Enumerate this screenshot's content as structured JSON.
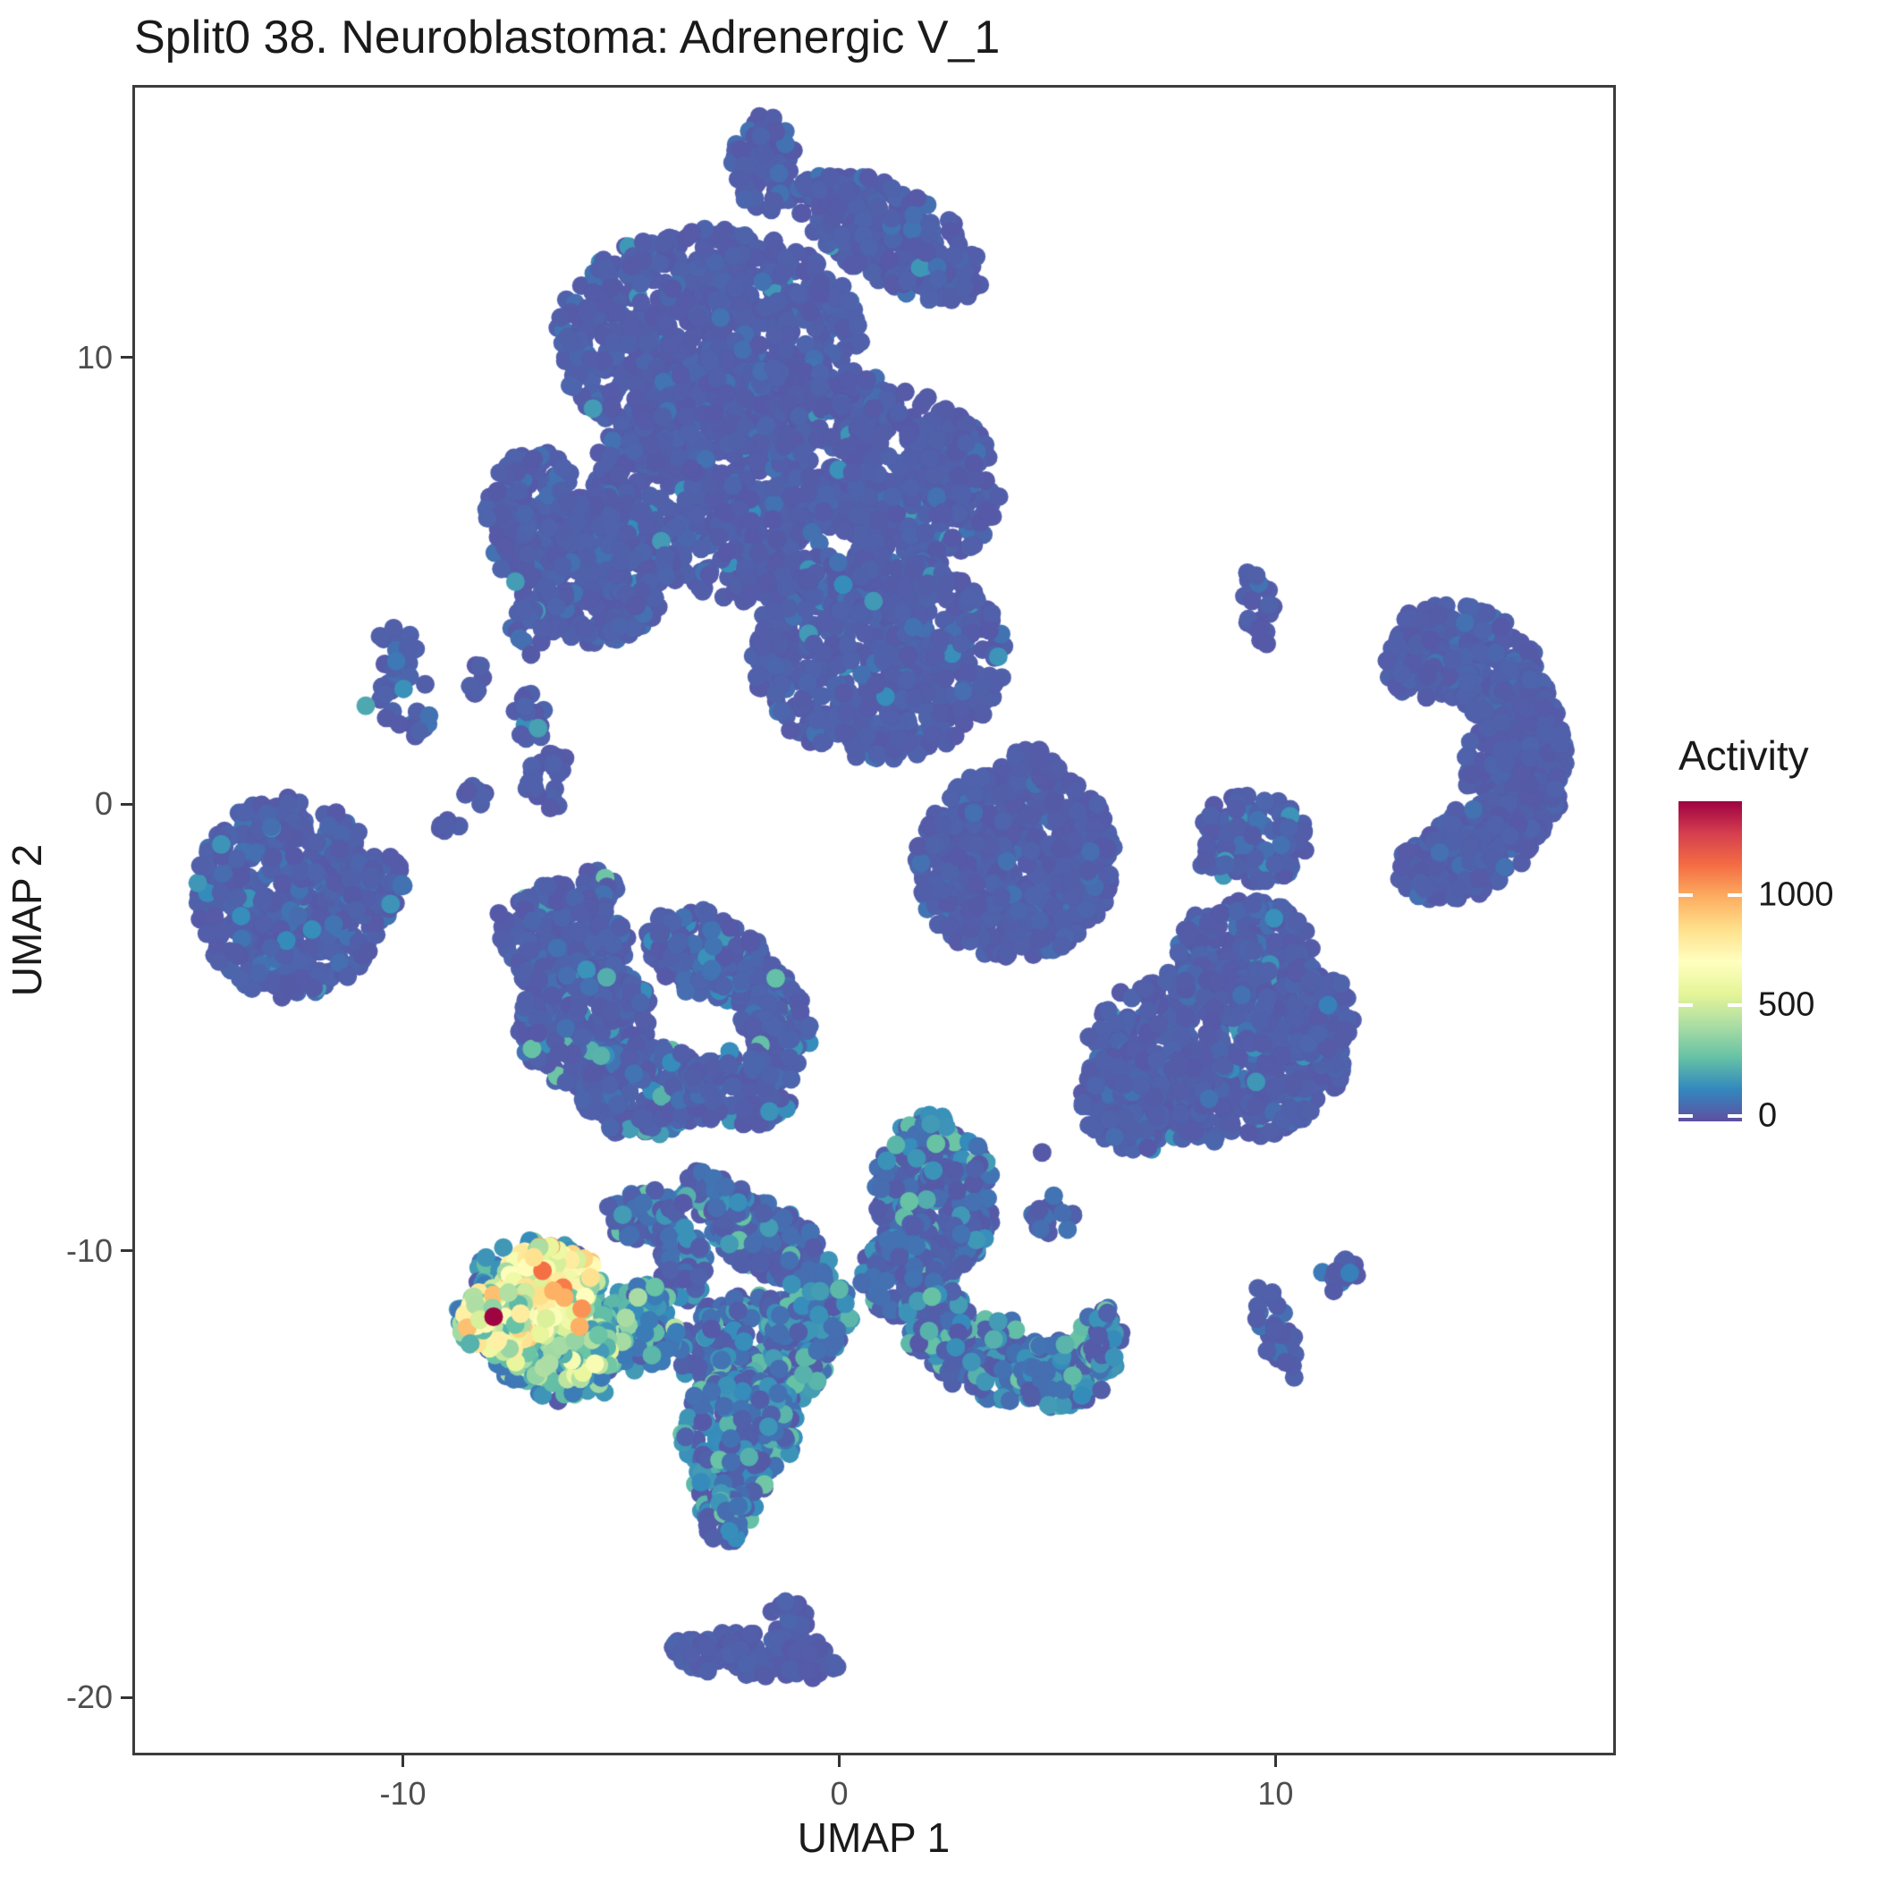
{
  "title": "Split0 38. Neuroblastoma: Adrenergic V_1",
  "chart_data": {
    "type": "scatter",
    "title": "Split0 38. Neuroblastoma: Adrenergic V_1",
    "xlabel": "UMAP 1",
    "ylabel": "UMAP 2",
    "xlim": [
      -16.2,
      17.8
    ],
    "ylim": [
      -21.3,
      16.1
    ],
    "x_ticks": [
      -10,
      0,
      10
    ],
    "y_ticks": [
      10,
      0,
      -10,
      -20
    ],
    "grid": false,
    "legend_title": "Activity",
    "legend_ticks": [
      1000,
      500,
      0
    ],
    "legend_position": "right",
    "color_palette": [
      "#5e4fa2",
      "#3288bd",
      "#66c2a5",
      "#abdda4",
      "#e6f598",
      "#ffffbf",
      "#fee08b",
      "#fdae61",
      "#f46d43",
      "#d53e4f",
      "#9e0142"
    ],
    "color_domain": [
      -25,
      1425
    ],
    "point_radius_px": 10.5,
    "clusters": [
      {
        "name": "top-main",
        "count": 3200,
        "ellipses": [
          [
            -1.7,
            14.3,
            0.75,
            1.15,
            0
          ],
          [
            1.2,
            12.7,
            2.4,
            1.05,
            -28
          ],
          [
            -3.0,
            10.4,
            3.5,
            2.5,
            0
          ],
          [
            -1.0,
            7.1,
            4.7,
            2.7,
            0
          ],
          [
            0.9,
            3.3,
            2.9,
            2.3,
            0
          ],
          [
            -5.7,
            5.3,
            1.9,
            1.7,
            0
          ],
          [
            -7.0,
            6.4,
            1.1,
            1.6,
            0
          ]
        ],
        "values": [
          [
            0,
            0.82
          ],
          [
            30,
            0.1
          ],
          [
            60,
            0.06
          ],
          [
            150,
            0.02
          ]
        ]
      },
      {
        "name": "left-small-two-lobe",
        "count": 38,
        "ellipses": [
          [
            -10.15,
            3.55,
            0.45,
            0.55,
            0
          ],
          [
            -9.9,
            2.45,
            0.65,
            0.95,
            10
          ]
        ],
        "values": [
          [
            0,
            0.7
          ],
          [
            30,
            0.15
          ],
          [
            60,
            0.1
          ],
          [
            150,
            0.05
          ]
        ]
      },
      {
        "name": "tiny-three-point",
        "count": 7,
        "ellipses": [
          [
            -8.25,
            2.75,
            0.28,
            0.4,
            0
          ]
        ],
        "values": [
          [
            0,
            1.0
          ]
        ]
      },
      {
        "name": "vertical-strip-chain",
        "count": 55,
        "ellipses": [
          [
            -7.15,
            3.85,
            0.42,
            0.55,
            0
          ],
          [
            -7.1,
            1.9,
            0.38,
            0.62,
            0
          ],
          [
            -6.6,
            0.55,
            0.6,
            0.68,
            0
          ]
        ],
        "values": [
          [
            0,
            0.8
          ],
          [
            30,
            0.1
          ],
          [
            60,
            0.07
          ],
          [
            150,
            0.03
          ]
        ]
      },
      {
        "name": "tiny-pair-a",
        "count": 7,
        "ellipses": [
          [
            -8.45,
            0.15,
            0.35,
            0.28,
            0
          ]
        ],
        "values": [
          [
            0,
            1.0
          ]
        ]
      },
      {
        "name": "tiny-pair-b",
        "count": 6,
        "ellipses": [
          [
            -8.85,
            -0.5,
            0.3,
            0.3,
            0
          ]
        ],
        "values": [
          [
            0,
            1.0
          ]
        ]
      },
      {
        "name": "left-cluster",
        "count": 520,
        "ellipses": [
          [
            -12.6,
            -2.1,
            2.15,
            2.25,
            10
          ],
          [
            -10.6,
            -1.9,
            0.7,
            0.8,
            0
          ]
        ],
        "values": [
          [
            0,
            0.66
          ],
          [
            30,
            0.16
          ],
          [
            60,
            0.12
          ],
          [
            150,
            0.06
          ]
        ]
      },
      {
        "name": "mid-left-complex",
        "count": 1050,
        "ellipses": [
          [
            -5.5,
            -1.7,
            0.5,
            0.3,
            -40
          ],
          [
            -6.3,
            -3.0,
            1.45,
            1.25,
            0
          ],
          [
            -5.8,
            -4.9,
            1.55,
            1.45,
            0
          ],
          [
            -4.5,
            -6.4,
            1.5,
            1.05,
            0
          ],
          [
            -3.0,
            -3.4,
            1.5,
            0.95,
            -25
          ],
          [
            -1.5,
            -4.7,
            0.75,
            1.25,
            25
          ],
          [
            -2.3,
            -6.4,
            1.25,
            0.9,
            0
          ]
        ],
        "values": [
          [
            0,
            0.62
          ],
          [
            30,
            0.18
          ],
          [
            60,
            0.12
          ],
          [
            150,
            0.06
          ],
          [
            250,
            0.02
          ]
        ]
      },
      {
        "name": "center-right-blob",
        "count": 620,
        "ellipses": [
          [
            4.05,
            -1.3,
            2.3,
            2.15,
            12
          ],
          [
            4.5,
            0.8,
            0.6,
            0.55,
            0
          ]
        ],
        "values": [
          [
            0,
            0.85
          ],
          [
            30,
            0.1
          ],
          [
            60,
            0.05
          ]
        ]
      },
      {
        "name": "right-mid-cluster",
        "count": 1150,
        "ellipses": [
          [
            9.4,
            -0.8,
            1.35,
            1.0,
            0
          ],
          [
            9.3,
            -3.2,
            1.55,
            1.05,
            0
          ],
          [
            8.6,
            -5.6,
            3.0,
            2.0,
            0
          ],
          [
            7.0,
            -6.6,
            1.5,
            1.2,
            0
          ],
          [
            10.4,
            -4.7,
            1.4,
            1.1,
            0
          ]
        ],
        "values": [
          [
            0,
            0.74
          ],
          [
            30,
            0.14
          ],
          [
            60,
            0.08
          ],
          [
            150,
            0.04
          ]
        ]
      },
      {
        "name": "right-crescent",
        "count": 780,
        "ellipses": [
          [
            14.5,
            3.3,
            1.8,
            1.05,
            -25
          ],
          [
            15.5,
            1.0,
            1.15,
            2.1,
            0
          ],
          [
            14.4,
            -1.05,
            1.7,
            1.0,
            22
          ],
          [
            13.3,
            3.1,
            0.8,
            0.75,
            0
          ]
        ],
        "values": [
          [
            0,
            0.84
          ],
          [
            30,
            0.11
          ],
          [
            60,
            0.05
          ]
        ]
      },
      {
        "name": "chain-top-right",
        "count": 22,
        "ellipses": [
          [
            9.6,
            4.4,
            0.38,
            0.85,
            15
          ]
        ],
        "values": [
          [
            0,
            0.9
          ],
          [
            60,
            0.1
          ]
        ]
      },
      {
        "name": "chain-bottom-right",
        "count": 30,
        "ellipses": [
          [
            10.0,
            -11.8,
            0.36,
            1.3,
            20
          ]
        ],
        "values": [
          [
            0,
            0.82
          ],
          [
            60,
            0.18
          ]
        ]
      },
      {
        "name": "tri-blob-right",
        "count": 11,
        "ellipses": [
          [
            11.55,
            -10.55,
            0.55,
            0.4,
            0
          ]
        ],
        "values": [
          [
            0,
            0.8
          ],
          [
            80,
            0.2
          ]
        ]
      },
      {
        "name": "bottom-tail",
        "count": 150,
        "ellipses": [
          [
            -2.9,
            -18.95,
            0.95,
            0.5,
            0
          ],
          [
            -1.7,
            -19.05,
            1.05,
            0.5,
            0
          ],
          [
            -1.15,
            -18.4,
            0.5,
            0.55,
            0
          ],
          [
            -0.55,
            -19.2,
            0.55,
            0.45,
            0
          ]
        ],
        "values": [
          [
            0,
            0.85
          ],
          [
            30,
            0.15
          ]
        ]
      },
      {
        "name": "bird-bridge-upper",
        "count": 150,
        "ellipses": [
          [
            -4.5,
            -9.2,
            0.9,
            0.6,
            0
          ],
          [
            -3.6,
            -10.3,
            0.55,
            0.9,
            0
          ]
        ],
        "values": [
          [
            0,
            0.55
          ],
          [
            60,
            0.25
          ],
          [
            150,
            0.15
          ],
          [
            250,
            0.05
          ]
        ]
      },
      {
        "name": "bird-arc-band",
        "count": 240,
        "ellipses": [
          [
            -1.6,
            -9.8,
            1.6,
            0.8,
            -33
          ],
          [
            -2.9,
            -8.8,
            0.85,
            0.55,
            -20
          ]
        ],
        "values": [
          [
            0,
            0.45
          ],
          [
            60,
            0.28
          ],
          [
            150,
            0.18
          ],
          [
            250,
            0.09
          ]
        ]
      },
      {
        "name": "bird-lobe",
        "count": 420,
        "ellipses": [
          [
            2.2,
            -8.8,
            1.35,
            1.85,
            8
          ],
          [
            1.4,
            -10.6,
            0.9,
            0.9,
            0
          ]
        ],
        "values": [
          [
            0,
            0.55
          ],
          [
            60,
            0.25
          ],
          [
            150,
            0.14
          ],
          [
            250,
            0.06
          ]
        ]
      },
      {
        "name": "bird-mid-core",
        "count": 680,
        "ellipses": [
          [
            -1.9,
            -12.3,
            1.75,
            1.35,
            0
          ],
          [
            -2.3,
            -14.0,
            1.35,
            1.2,
            0
          ],
          [
            -2.5,
            -15.2,
            0.85,
            1.0,
            0
          ],
          [
            -2.6,
            -16.0,
            0.5,
            0.65,
            0
          ],
          [
            -0.7,
            -11.4,
            1.0,
            1.0,
            0
          ]
        ],
        "values": [
          [
            0,
            0.3
          ],
          [
            60,
            0.3
          ],
          [
            150,
            0.24
          ],
          [
            250,
            0.16
          ]
        ]
      },
      {
        "name": "bird-hook-right",
        "count": 330,
        "ellipses": [
          [
            3.5,
            -12.4,
            1.5,
            0.95,
            -12
          ],
          [
            5.2,
            -12.7,
            1.15,
            0.8,
            15
          ],
          [
            6.0,
            -11.9,
            0.5,
            0.65,
            0
          ],
          [
            2.2,
            -11.6,
            0.8,
            0.8,
            0
          ]
        ],
        "values": [
          [
            0,
            0.35
          ],
          [
            60,
            0.25
          ],
          [
            150,
            0.25
          ],
          [
            250,
            0.15
          ]
        ]
      },
      {
        "name": "blob-above-hook",
        "count": 18,
        "ellipses": [
          [
            4.9,
            -9.2,
            0.5,
            0.45,
            0
          ]
        ],
        "values": [
          [
            0,
            0.7
          ],
          [
            60,
            0.3
          ]
        ]
      },
      {
        "name": "bridge-to-hotspot",
        "count": 110,
        "ellipses": [
          [
            -4.65,
            -11.7,
            0.95,
            1.0,
            0
          ]
        ],
        "values": [
          [
            80,
            0.3
          ],
          [
            150,
            0.3
          ],
          [
            250,
            0.18
          ],
          [
            0,
            0.12
          ],
          [
            400,
            0.1
          ]
        ]
      },
      {
        "name": "hotspot-fringe",
        "count": 240,
        "ellipses": [
          [
            -7.0,
            -11.3,
            1.75,
            1.55,
            0
          ],
          [
            -6.3,
            -12.4,
            1.5,
            1.0,
            0
          ]
        ],
        "values": [
          [
            80,
            0.3
          ],
          [
            150,
            0.3
          ],
          [
            250,
            0.25
          ],
          [
            400,
            0.1
          ],
          [
            0,
            0.05
          ]
        ]
      },
      {
        "name": "hotspot-bottom",
        "count": 130,
        "ellipses": [
          [
            -6.4,
            -12.2,
            1.25,
            0.8,
            0
          ]
        ],
        "values": [
          [
            400,
            0.3
          ],
          [
            545,
            0.22
          ],
          [
            250,
            0.28
          ],
          [
            690,
            0.08
          ],
          [
            150,
            0.12
          ]
        ]
      },
      {
        "name": "hotspot-core",
        "count": 200,
        "ellipses": [
          [
            -6.6,
            -10.8,
            1.15,
            0.95,
            0
          ],
          [
            -7.3,
            -11.3,
            0.8,
            0.8,
            0
          ]
        ],
        "values": [
          [
            545,
            0.28
          ],
          [
            690,
            0.3
          ],
          [
            835,
            0.2
          ],
          [
            400,
            0.14
          ],
          [
            980,
            0.05
          ],
          [
            250,
            0.03
          ]
        ]
      },
      {
        "name": "hotspot-left",
        "count": 90,
        "ellipses": [
          [
            -7.9,
            -11.6,
            0.8,
            0.75,
            0
          ]
        ],
        "values": [
          [
            545,
            0.3
          ],
          [
            690,
            0.2
          ],
          [
            400,
            0.25
          ],
          [
            835,
            0.1
          ],
          [
            250,
            0.15
          ]
        ]
      }
    ],
    "extra_points": [
      [
        -7.92,
        -11.48,
        1420
      ],
      [
        -6.8,
        -10.45,
        1130
      ],
      [
        -6.55,
        -10.9,
        980
      ],
      [
        -6.3,
        -11.05,
        980
      ],
      [
        -5.9,
        -11.3,
        1050
      ],
      [
        -5.95,
        -11.7,
        980
      ],
      [
        -7.0,
        -10.15,
        835
      ],
      [
        -5.7,
        -10.6,
        835
      ],
      [
        4.65,
        -7.8,
        0
      ],
      [
        5.35,
        -12.8,
        250
      ],
      [
        11.7,
        -10.5,
        100
      ],
      [
        -10.85,
        2.2,
        200
      ],
      [
        -10.15,
        3.2,
        80
      ],
      [
        11.2,
        -4.5,
        100
      ],
      [
        -7.8,
        -2.45,
        0
      ],
      [
        -6.9,
        1.7,
        180
      ]
    ]
  },
  "layout_colors": {
    "panel_border": "#3c3c3c",
    "tick": "#333333",
    "tick_label": "#4d4d4d",
    "text": "#1a1a1a",
    "background": "#ffffff"
  }
}
